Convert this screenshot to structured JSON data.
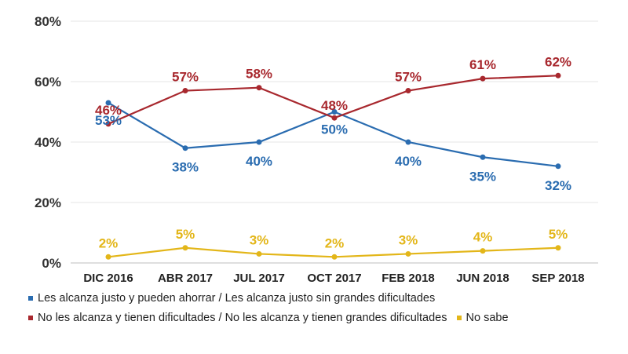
{
  "chart_data": {
    "type": "line",
    "categories": [
      "DIC 2016",
      "ABR 2017",
      "JUL 2017",
      "OCT 2017",
      "FEB 2018",
      "JUN 2018",
      "SEP 2018"
    ],
    "y_ticks": [
      "0%",
      "20%",
      "40%",
      "60%",
      "80%"
    ],
    "ylim": [
      0,
      80
    ],
    "grid": true,
    "series": [
      {
        "name": "Les alcanza justo y pueden ahorrar / Les alcanza justo sin grandes dificultades",
        "color": "#2a6cb0",
        "values": [
          53,
          38,
          40,
          50,
          40,
          35,
          32
        ],
        "labels": [
          "53%",
          "38%",
          "40%",
          "50%",
          "40%",
          "35%",
          "32%"
        ]
      },
      {
        "name": "No les alcanza y tienen dificultades / No les alcanza y tienen grandes dificultades",
        "color": "#a8282e",
        "values": [
          46,
          57,
          58,
          48,
          57,
          61,
          62
        ],
        "labels": [
          "46%",
          "57%",
          "58%",
          "48%",
          "57%",
          "61%",
          "62%"
        ]
      },
      {
        "name": "No sabe",
        "color": "#e3b619",
        "values": [
          2,
          5,
          3,
          2,
          3,
          4,
          5
        ],
        "labels": [
          "2%",
          "5%",
          "3%",
          "2%",
          "3%",
          "4%",
          "5%"
        ]
      }
    ]
  },
  "legend": {
    "line1_marker": "•",
    "line2_marker": "•",
    "line2_marker_b": "•",
    "line1": "Les alcanza justo y pueden ahorrar / Les alcanza justo sin grandes dificultades",
    "line2a": "No les alcanza y tienen dificultades / No les alcanza y tienen grandes dificultades",
    "line2b": "No sabe"
  }
}
